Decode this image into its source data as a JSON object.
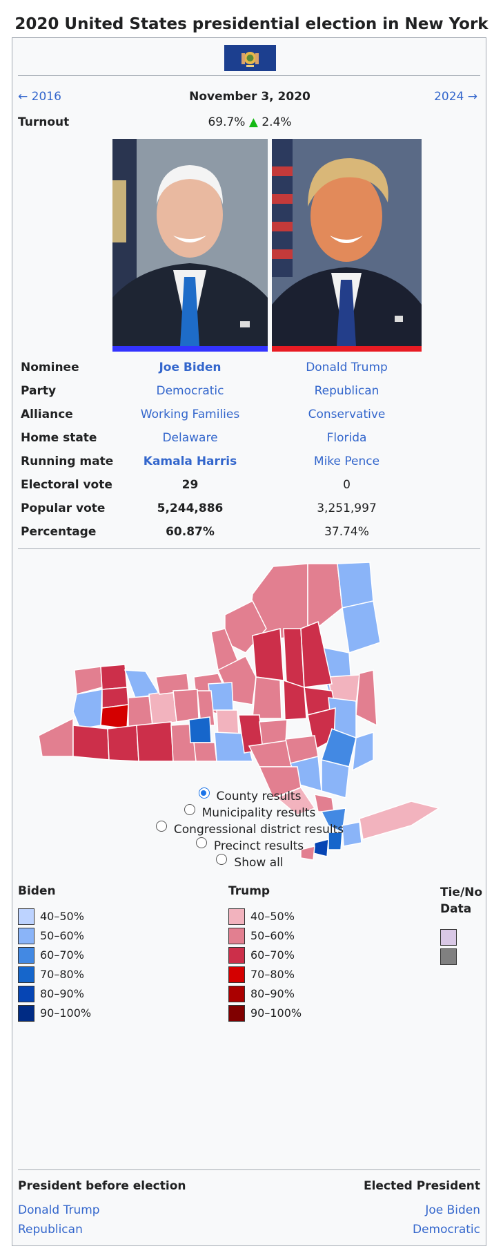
{
  "title": "2020 United States presidential election in New York",
  "nav": {
    "prev": "← 2016",
    "date": "November 3, 2020",
    "next": "2024 →"
  },
  "turnout": {
    "label": "Turnout",
    "value": "69.7%",
    "arrow": "▲",
    "change": "2.4%"
  },
  "candidates_table": {
    "rows": [
      {
        "label": "Nominee",
        "a": "Joe Biden",
        "b": "Donald Trump"
      },
      {
        "label": "Party",
        "a": "Democratic",
        "b": "Republican"
      },
      {
        "label": "Alliance",
        "a": "Working Families",
        "b": "Conservative"
      },
      {
        "label": "Home state",
        "a": "Delaware",
        "b": "Florida"
      },
      {
        "label": "Running mate",
        "a": "Kamala Harris",
        "b": "Mike Pence"
      },
      {
        "label": "Electoral vote",
        "a": "29",
        "b": "0"
      },
      {
        "label": "Popular vote",
        "a": "5,244,886",
        "b": "3,251,997"
      },
      {
        "label": "Percentage",
        "a": "60.87%",
        "b": "37.74%"
      }
    ],
    "colors": {
      "dem": "#3333ff",
      "rep": "#e81b23"
    }
  },
  "map_options": [
    {
      "label": "County results",
      "checked": true
    },
    {
      "label": "Municipality results",
      "checked": false
    },
    {
      "label": "Congressional district results",
      "checked": false
    },
    {
      "label": "Precinct results",
      "checked": false
    },
    {
      "label": "Show all",
      "checked": false
    }
  ],
  "legend": {
    "biden": {
      "title": "Biden",
      "items": [
        "40–50%",
        "50–60%",
        "60–70%",
        "70–80%",
        "80–90%",
        "90–100%"
      ],
      "colors": [
        "#bdd3ff",
        "#8ab4f8",
        "#4389e3",
        "#1666cb",
        "#0645b4",
        "#002b84"
      ]
    },
    "trump": {
      "title": "Trump",
      "items": [
        "40–50%",
        "50–60%",
        "60–70%",
        "70–80%",
        "80–90%",
        "90–100%"
      ],
      "colors": [
        "#f2b3be",
        "#e27f90",
        "#cc2f4a",
        "#d40000",
        "#aa0000",
        "#800000"
      ]
    },
    "tie": {
      "title": "Tie/No Data",
      "colors": [
        "#d9c8e6",
        "#808080"
      ]
    }
  },
  "footer": {
    "before_label": "President before election",
    "elected_label": "Elected President",
    "before_name": "Donald Trump",
    "before_party": "Republican",
    "elected_name": "Joe Biden",
    "elected_party": "Democratic"
  }
}
